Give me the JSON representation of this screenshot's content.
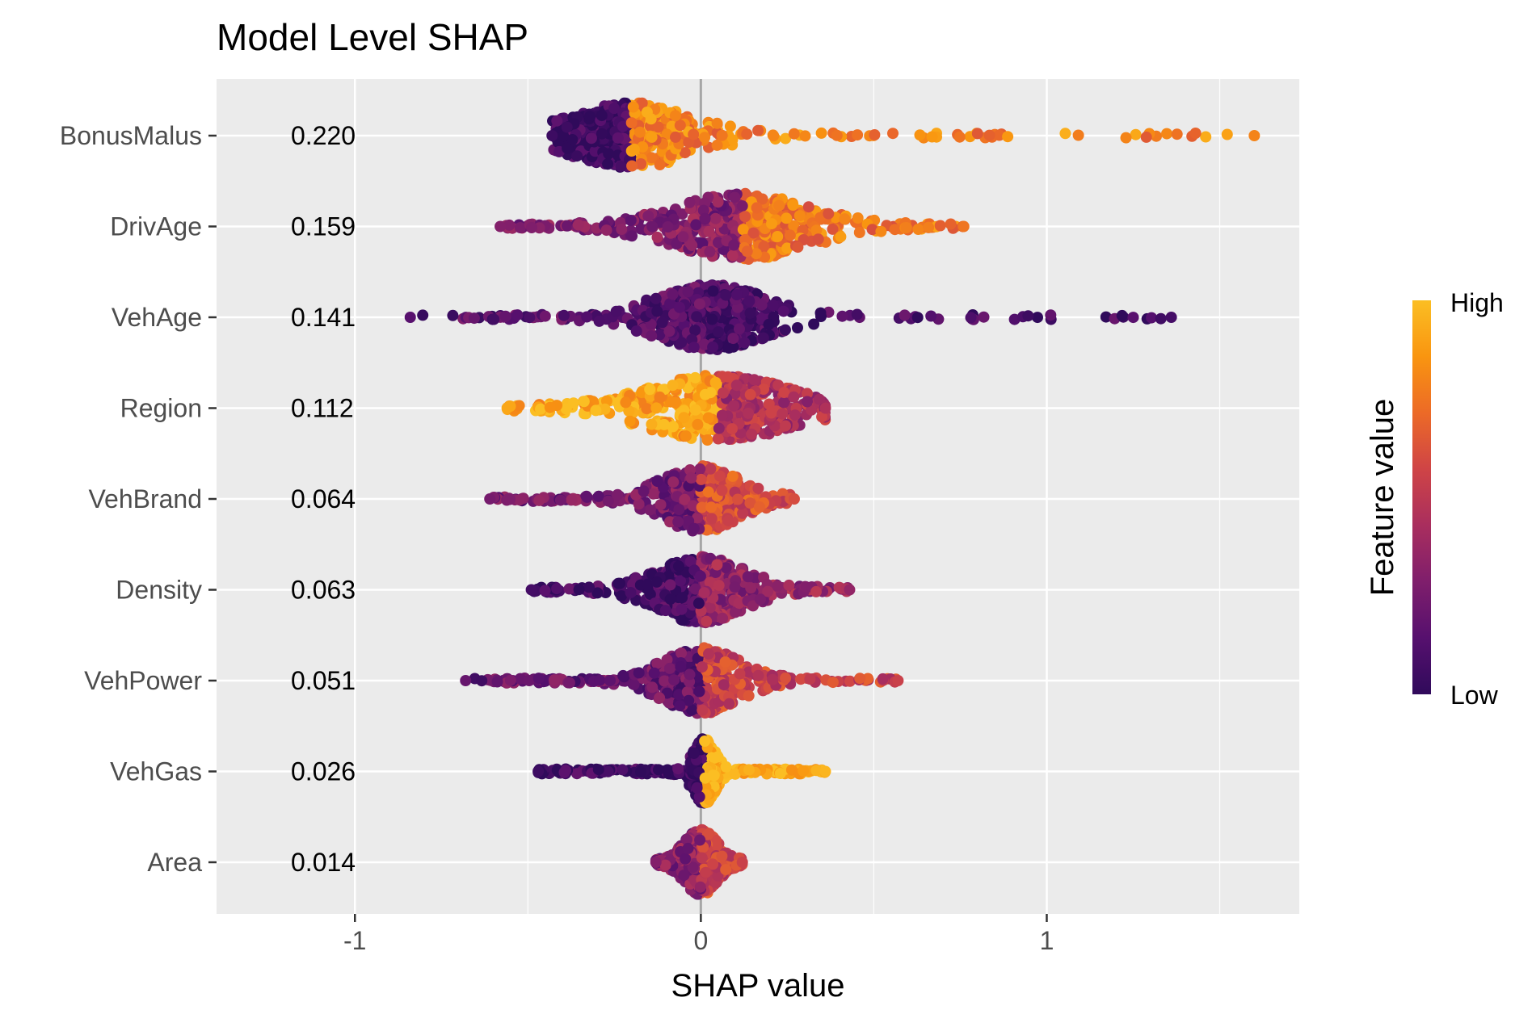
{
  "chart_data": {
    "type": "scatter",
    "subtype": "shap-beeswarm",
    "title": "Model Level SHAP",
    "xlabel": "SHAP value",
    "xlim": [
      -1.4,
      1.73
    ],
    "xticks": [
      -1,
      0,
      1
    ],
    "x_tick_labels": [
      "-1",
      "0",
      "1"
    ],
    "reference_line_x": 0,
    "grid": true,
    "features": [
      {
        "name": "BonusMalus",
        "importance": "0.220",
        "range": [
          -0.43,
          1.6
        ],
        "mode": -0.2,
        "spread": 0.11,
        "tail": 1.5,
        "color_low_side": 0.05,
        "color_high_side": 0.8
      },
      {
        "name": "DrivAge",
        "importance": "0.159",
        "range": [
          -0.58,
          0.76
        ],
        "mode": 0.12,
        "spread": 0.12,
        "tail": 1.0,
        "color_low_side": 0.3,
        "color_high_side": 0.75
      },
      {
        "name": "VehAge",
        "importance": "0.141",
        "range": [
          -0.84,
          1.36
        ],
        "mode": 0.03,
        "spread": 0.1,
        "tail": 1.7,
        "color_low_side": 0.15,
        "color_high_side": 0.08
      },
      {
        "name": "Region",
        "importance": "0.112",
        "range": [
          -0.56,
          0.36
        ],
        "mode": 0.05,
        "spread": 0.13,
        "tail": 0.9,
        "color_low_side": 0.92,
        "color_high_side": 0.45
      },
      {
        "name": "VehBrand",
        "importance": "0.064",
        "range": [
          -0.61,
          0.27
        ],
        "mode": 0.0,
        "spread": 0.07,
        "tail": 1.2,
        "color_low_side": 0.25,
        "color_high_side": 0.6
      },
      {
        "name": "Density",
        "importance": "0.063",
        "range": [
          -0.49,
          0.43
        ],
        "mode": 0.0,
        "spread": 0.08,
        "tail": 1.2,
        "color_low_side": 0.08,
        "color_high_side": 0.35
      },
      {
        "name": "VehPower",
        "importance": "0.051",
        "range": [
          -0.68,
          0.57
        ],
        "mode": 0.0,
        "spread": 0.07,
        "tail": 1.2,
        "color_low_side": 0.2,
        "color_high_side": 0.55
      },
      {
        "name": "VehGas",
        "importance": "0.026",
        "range": [
          -0.47,
          0.36
        ],
        "mode": 0.01,
        "spread": 0.02,
        "tail": 0.8,
        "color_low_side": 0.05,
        "color_high_side": 0.97
      },
      {
        "name": "Area",
        "importance": "0.014",
        "range": [
          -0.13,
          0.12
        ],
        "mode": 0.0,
        "spread": 0.03,
        "tail": 0.7,
        "color_low_side": 0.3,
        "color_high_side": 0.55
      }
    ],
    "legend": {
      "title": "Feature value",
      "high_label": "High",
      "low_label": "Low",
      "placement": "right",
      "colors": [
        "#300a5b",
        "#56106e",
        "#7f1e6c",
        "#a92e5e",
        "#cf4446",
        "#ec6a27",
        "#f99510",
        "#fbbe23"
      ]
    }
  }
}
